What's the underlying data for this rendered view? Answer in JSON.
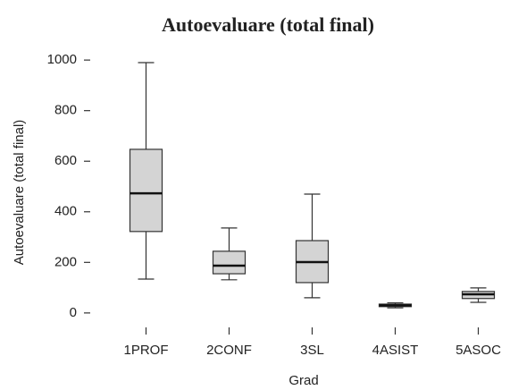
{
  "chart_data": {
    "type": "box",
    "title": "Autoevaluare (total final)",
    "x_label": "Grad",
    "y_label": "Autoevaluare (total final)",
    "categories": [
      "1PROF",
      "2CONF",
      "3SL",
      "4ASIST",
      "5ASOC"
    ],
    "min": [
      134,
      131,
      60,
      20,
      42
    ],
    "q1": [
      322,
      155,
      120,
      25,
      57
    ],
    "median": [
      473,
      187,
      201,
      30,
      74
    ],
    "q3": [
      647,
      244,
      286,
      35,
      85
    ],
    "max": [
      990,
      336,
      470,
      40,
      99
    ],
    "color": "#d4d4d4",
    "ylim": [
      -50,
      1050
    ],
    "yticks": [
      0,
      200,
      400,
      600,
      800,
      1000
    ]
  }
}
